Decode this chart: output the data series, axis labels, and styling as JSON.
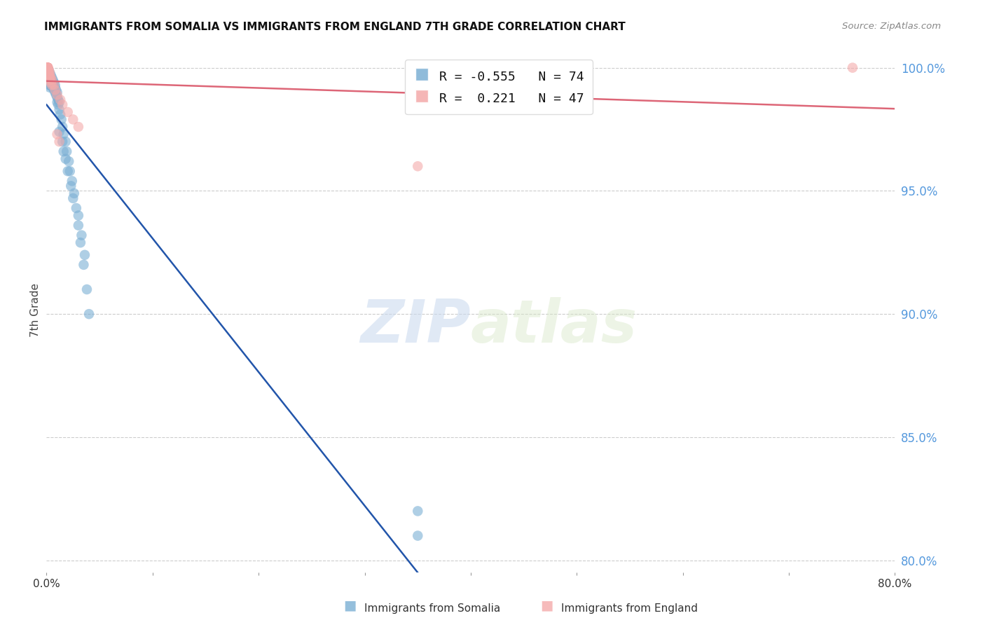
{
  "title": "IMMIGRANTS FROM SOMALIA VS IMMIGRANTS FROM ENGLAND 7TH GRADE CORRELATION CHART",
  "source": "Source: ZipAtlas.com",
  "ylabel": "7th Grade",
  "xlim": [
    0.0,
    0.8
  ],
  "ylim": [
    0.795,
    1.008
  ],
  "y_ticks_right": [
    0.8,
    0.85,
    0.9,
    0.95,
    1.0
  ],
  "y_tick_labels_right": [
    "80.0%",
    "85.0%",
    "90.0%",
    "95.0%",
    "100.0%"
  ],
  "somalia_color": "#7BAFD4",
  "england_color": "#F4AAAA",
  "somalia_line_color": "#2255AA",
  "england_line_color": "#DD6677",
  "legend_R_somalia": "-0.555",
  "legend_N_somalia": "74",
  "legend_R_england": "0.221",
  "legend_N_england": "47",
  "watermark_zip": "ZIP",
  "watermark_atlas": "atlas",
  "somalia_x": [
    0.001,
    0.001,
    0.001,
    0.002,
    0.002,
    0.002,
    0.002,
    0.002,
    0.002,
    0.002,
    0.003,
    0.003,
    0.003,
    0.003,
    0.003,
    0.003,
    0.003,
    0.004,
    0.004,
    0.004,
    0.004,
    0.004,
    0.005,
    0.005,
    0.005,
    0.005,
    0.006,
    0.006,
    0.006,
    0.006,
    0.007,
    0.007,
    0.007,
    0.008,
    0.008,
    0.008,
    0.009,
    0.009,
    0.01,
    0.01,
    0.01,
    0.011,
    0.011,
    0.012,
    0.012,
    0.013,
    0.014,
    0.015,
    0.016,
    0.018,
    0.019,
    0.021,
    0.022,
    0.024,
    0.026,
    0.028,
    0.03,
    0.032,
    0.035,
    0.038,
    0.04,
    0.015,
    0.018,
    0.012,
    0.016,
    0.02,
    0.023,
    0.025,
    0.03,
    0.033,
    0.036,
    0.35,
    0.35
  ],
  "somalia_y": [
    0.998,
    0.997,
    0.996,
    0.999,
    0.998,
    0.997,
    0.996,
    0.995,
    0.994,
    0.993,
    0.998,
    0.997,
    0.996,
    0.995,
    0.994,
    0.993,
    0.992,
    0.997,
    0.996,
    0.995,
    0.994,
    0.993,
    0.996,
    0.995,
    0.994,
    0.993,
    0.995,
    0.994,
    0.993,
    0.992,
    0.994,
    0.993,
    0.991,
    0.993,
    0.992,
    0.99,
    0.991,
    0.989,
    0.99,
    0.988,
    0.986,
    0.987,
    0.985,
    0.986,
    0.983,
    0.981,
    0.979,
    0.976,
    0.973,
    0.97,
    0.966,
    0.962,
    0.958,
    0.954,
    0.949,
    0.943,
    0.936,
    0.929,
    0.92,
    0.91,
    0.9,
    0.97,
    0.963,
    0.974,
    0.966,
    0.958,
    0.952,
    0.947,
    0.94,
    0.932,
    0.924,
    0.82,
    0.81
  ],
  "england_x": [
    0.001,
    0.001,
    0.001,
    0.001,
    0.001,
    0.001,
    0.001,
    0.001,
    0.001,
    0.001,
    0.001,
    0.001,
    0.001,
    0.001,
    0.001,
    0.001,
    0.001,
    0.001,
    0.001,
    0.001,
    0.002,
    0.002,
    0.002,
    0.002,
    0.002,
    0.003,
    0.003,
    0.003,
    0.003,
    0.004,
    0.004,
    0.005,
    0.005,
    0.007,
    0.008,
    0.01,
    0.013,
    0.015,
    0.02,
    0.025,
    0.03,
    0.01,
    0.012,
    0.35,
    0.76
  ],
  "england_y": [
    1.0,
    1.0,
    1.0,
    1.0,
    1.0,
    1.0,
    1.0,
    1.0,
    1.0,
    1.0,
    1.0,
    1.0,
    1.0,
    1.0,
    1.0,
    1.0,
    1.0,
    1.0,
    1.0,
    1.0,
    0.999,
    0.999,
    0.998,
    0.997,
    0.996,
    0.998,
    0.997,
    0.996,
    0.995,
    0.996,
    0.994,
    0.995,
    0.993,
    0.993,
    0.991,
    0.989,
    0.987,
    0.985,
    0.982,
    0.979,
    0.976,
    0.973,
    0.97,
    0.96,
    1.0
  ]
}
